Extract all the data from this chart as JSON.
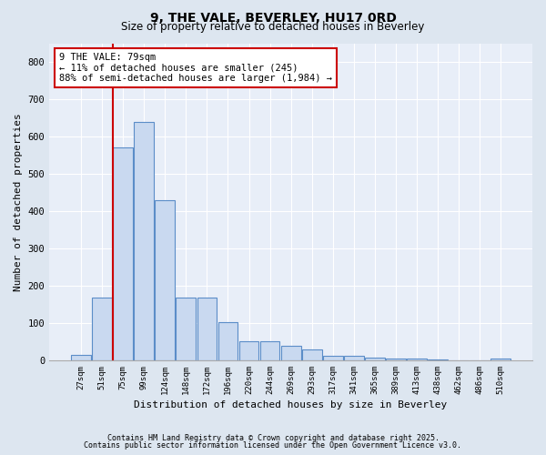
{
  "title1": "9, THE VALE, BEVERLEY, HU17 0RD",
  "title2": "Size of property relative to detached houses in Beverley",
  "xlabel": "Distribution of detached houses by size in Beverley",
  "ylabel": "Number of detached properties",
  "bar_labels": [
    "27sqm",
    "51sqm",
    "75sqm",
    "99sqm",
    "124sqm",
    "148sqm",
    "172sqm",
    "196sqm",
    "220sqm",
    "244sqm",
    "269sqm",
    "293sqm",
    "317sqm",
    "341sqm",
    "365sqm",
    "389sqm",
    "413sqm",
    "438sqm",
    "462sqm",
    "486sqm",
    "510sqm"
  ],
  "bar_values": [
    15,
    168,
    570,
    638,
    428,
    168,
    168,
    103,
    52,
    52,
    38,
    30,
    11,
    11,
    7,
    5,
    5,
    3,
    0,
    0,
    4
  ],
  "bar_color": "#c9d9f0",
  "bar_edge_color": "#5b8dc8",
  "vline_color": "#cc0000",
  "annotation_text": "9 THE VALE: 79sqm\n← 11% of detached houses are smaller (245)\n88% of semi-detached houses are larger (1,984) →",
  "annotation_box_color": "#ffffff",
  "annotation_box_edge": "#cc0000",
  "ylim": [
    0,
    850
  ],
  "yticks": [
    0,
    100,
    200,
    300,
    400,
    500,
    600,
    700,
    800
  ],
  "footer1": "Contains HM Land Registry data © Crown copyright and database right 2025.",
  "footer2": "Contains public sector information licensed under the Open Government Licence v3.0.",
  "bg_color": "#dde6f0",
  "plot_bg_color": "#e8eef8"
}
